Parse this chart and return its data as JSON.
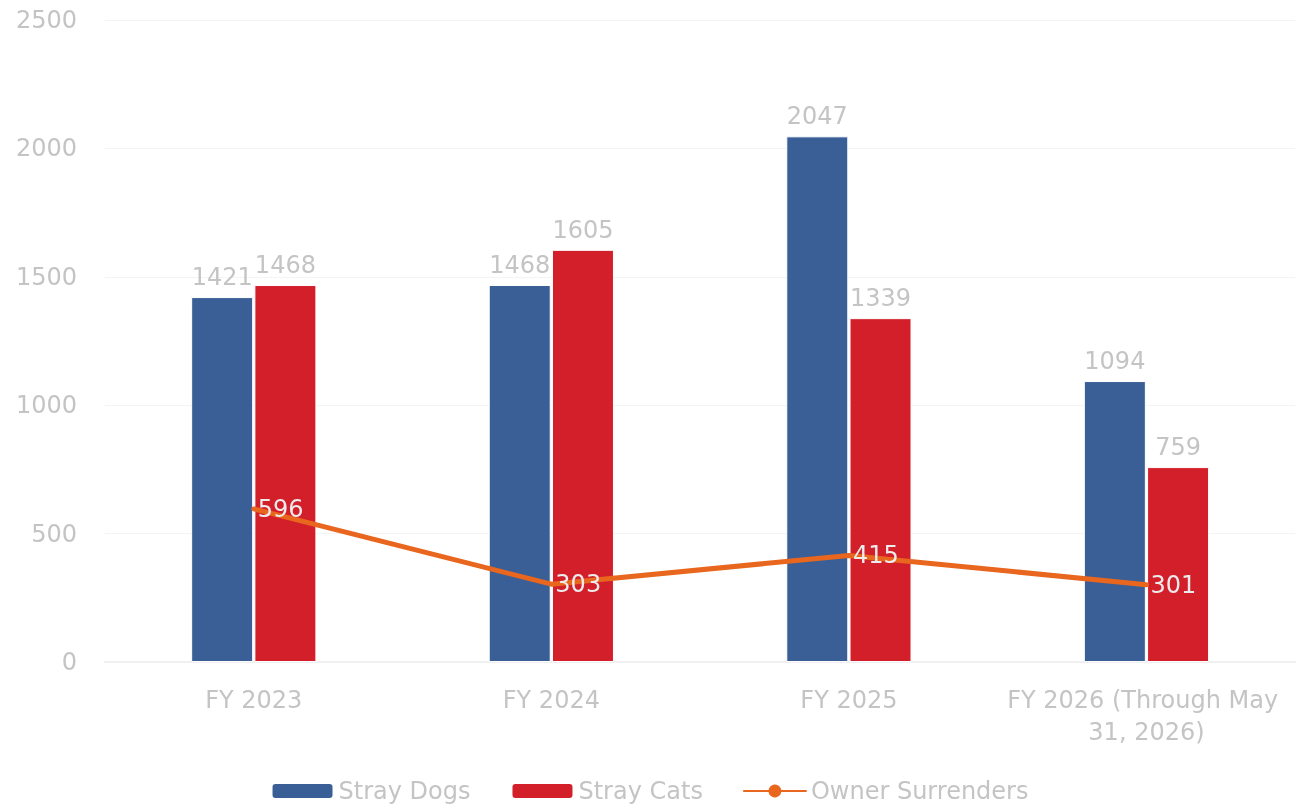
{
  "chart_data": {
    "type": "bar",
    "categories": [
      "FY 2023",
      "FY 2024",
      "FY 2025",
      "FY 2026 (Through May 31, 2026)"
    ],
    "series": [
      {
        "name": "Stray Dogs",
        "color": "#3a5f96",
        "values": [
          1421,
          1468,
          2047,
          1094
        ]
      },
      {
        "name": "Stray Cats",
        "color": "#d21f2a",
        "values": [
          1468,
          1605,
          1339,
          759
        ]
      },
      {
        "name": "Owner Surrenders",
        "type": "line",
        "color": "#e8661e",
        "values": [
          596,
          303,
          415,
          301
        ]
      }
    ],
    "ylim": [
      0,
      2500
    ],
    "yticks": [
      0,
      500,
      1000,
      1500,
      2000,
      2500
    ],
    "grid": "y",
    "legend": "bottom",
    "data_labels": true,
    "marker": "none"
  }
}
